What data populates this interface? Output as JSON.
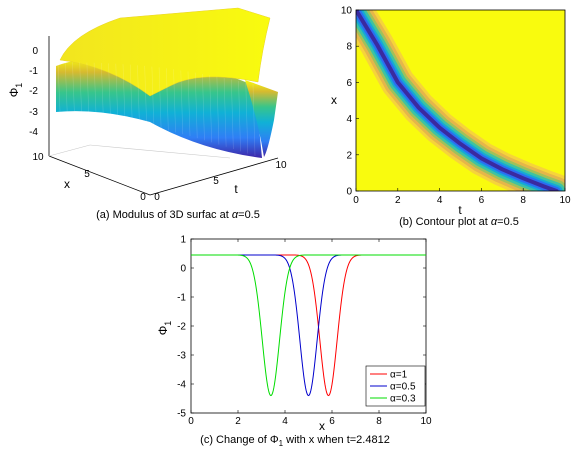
{
  "captions": {
    "a_prefix": "(a) Modulus of 3D surfac at ",
    "a_alpha": "α",
    "a_suffix": "=0.5",
    "b_prefix": "(b) Contour plot at ",
    "b_alpha": "α",
    "b_suffix": "=0.5",
    "c_prefix": "(c) Change of ",
    "c_phi": "Φ",
    "c_sub": "1",
    "c_suffix": " with x when t=2.4812"
  },
  "chart_data": [
    {
      "type": "surface",
      "panel": "a",
      "zlabel": "Φ",
      "zlabel_sub": "1",
      "xlabel": "x",
      "ylabel": "t",
      "zticks": [
        "0",
        "-1",
        "-2",
        "-3",
        "-4"
      ],
      "xticks": [
        "10",
        "5",
        "0"
      ],
      "tticks": [
        "0",
        "5",
        "10"
      ],
      "x_range": [
        0,
        10
      ],
      "t_range": [
        0,
        10
      ],
      "z_range": [
        -4.4,
        0.5
      ],
      "alpha": 0.5,
      "colormap": "parula"
    },
    {
      "type": "heatmap",
      "panel": "b",
      "xlabel": "t",
      "ylabel": "x",
      "xlim": [
        0,
        10
      ],
      "ylim": [
        0,
        10
      ],
      "xticks": [
        "0",
        "2",
        "4",
        "6",
        "8",
        "10"
      ],
      "yticks": [
        "0",
        "2",
        "4",
        "6",
        "8",
        "10"
      ],
      "alpha": 0.5,
      "colormap": "parula",
      "trough_curve": {
        "t": [
          0.0,
          1.0,
          2.0,
          3.0,
          4.0,
          5.0,
          6.0,
          7.0,
          8.0,
          9.0,
          9.6
        ],
        "x": [
          10.0,
          8.1,
          6.0,
          4.6,
          3.5,
          2.6,
          1.8,
          1.2,
          0.7,
          0.25,
          0.0
        ]
      }
    },
    {
      "type": "line",
      "panel": "c",
      "xlabel": "x",
      "ylabel": "Φ",
      "ylabel_sub": "1",
      "xlim": [
        0,
        10
      ],
      "ylim": [
        -5,
        1
      ],
      "xticks": [
        "0",
        "2",
        "4",
        "6",
        "8",
        "10"
      ],
      "yticks": [
        "1",
        "0",
        "-1",
        "-2",
        "-3",
        "-4",
        "-5"
      ],
      "grid": false,
      "legend_position": "bottom-right",
      "series": [
        {
          "name": "α=1",
          "color": "#ff0000",
          "center": 5.85,
          "min": -4.4,
          "baseline": 0.45,
          "width": 0.52
        },
        {
          "name": "α=0.5",
          "color": "#0000cc",
          "center": 5.0,
          "min": -4.4,
          "baseline": 0.45,
          "width": 0.52
        },
        {
          "name": "α=0.3",
          "color": "#00dd00",
          "center": 3.4,
          "min": -4.4,
          "baseline": 0.45,
          "width": 0.52
        }
      ]
    }
  ]
}
